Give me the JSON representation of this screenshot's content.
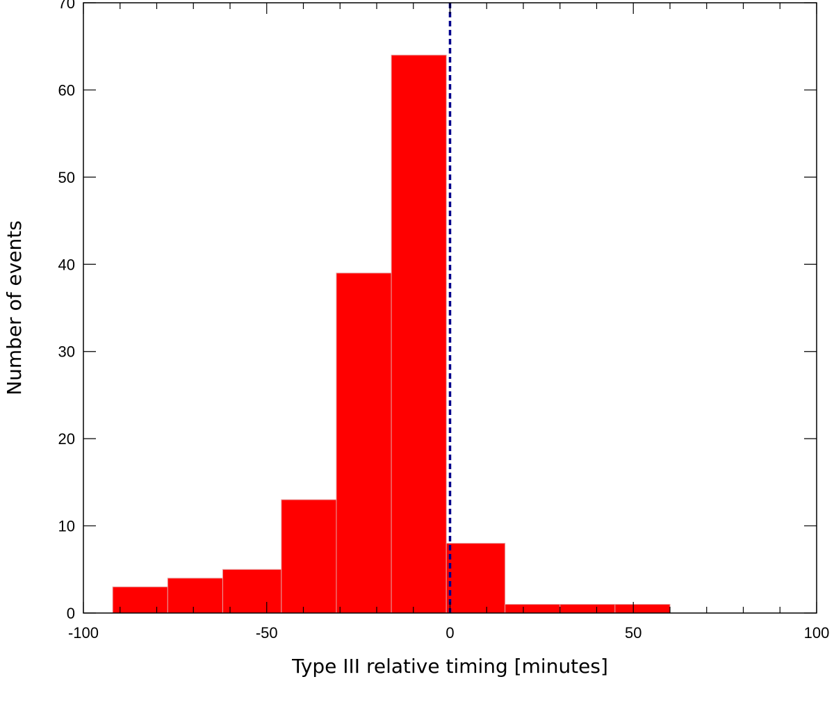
{
  "chart_data": {
    "type": "bar",
    "subtype": "histogram",
    "xlabel": "Type III relative timing [minutes]",
    "ylabel": "Number of events",
    "xlim": [
      -100,
      100
    ],
    "ylim": [
      0,
      70
    ],
    "x_ticks": [
      "-100",
      "-50",
      "0",
      "50",
      "100"
    ],
    "y_ticks": [
      "0",
      "10",
      "20",
      "30",
      "40",
      "50",
      "60",
      "70"
    ],
    "bins": [
      {
        "from": -92,
        "to": -77,
        "count": 3
      },
      {
        "from": -77,
        "to": -62,
        "count": 4
      },
      {
        "from": -62,
        "to": -46,
        "count": 5
      },
      {
        "from": -46,
        "to": -31,
        "count": 13
      },
      {
        "from": -31,
        "to": -16,
        "count": 39
      },
      {
        "from": -16,
        "to": -1,
        "count": 64
      },
      {
        "from": -1,
        "to": 15,
        "count": 8
      },
      {
        "from": 15,
        "to": 30,
        "count": 1
      },
      {
        "from": 30,
        "to": 45,
        "count": 1
      },
      {
        "from": 45,
        "to": 60,
        "count": 1
      }
    ],
    "reference_line": {
      "x": 0,
      "style": "dashed"
    },
    "bar_color": "#ff0000",
    "reference_line_color": "#00008b",
    "grid": false
  }
}
